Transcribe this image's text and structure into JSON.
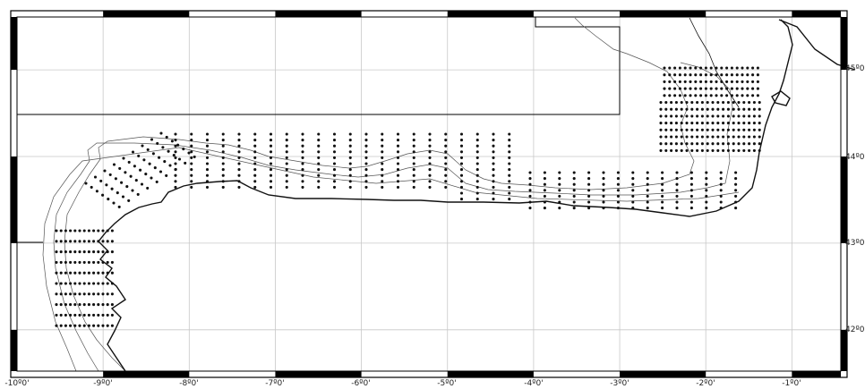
{
  "map": {
    "lon_labels": [
      "-10º0'",
      "-9º0'",
      "-8º0'",
      "-7º0'",
      "-6º0'",
      "-5º0'",
      "-4º0'",
      "-3º0'",
      "-2º0'",
      "-1º0'"
    ],
    "lat_labels": [
      "45º0'",
      "44º0'",
      "43º0'",
      "42º0'"
    ],
    "lon_range": [
      -10,
      -0.4
    ],
    "lat_range": [
      41.55,
      45.6
    ],
    "colors": {
      "background": "#ffffff",
      "frame": "#000000",
      "grid": "#c8c8c8",
      "coast": "#111111",
      "isobath": "#555555",
      "stations": "#111111"
    }
  }
}
